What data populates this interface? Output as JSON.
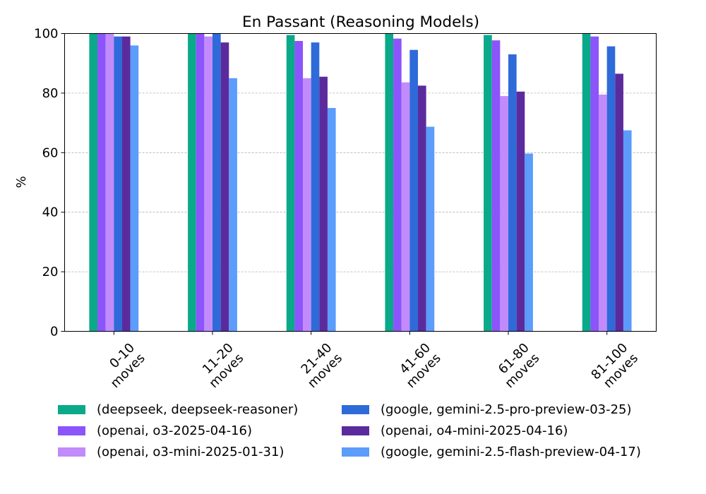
{
  "chart_data": {
    "type": "bar",
    "title": "En Passant (Reasoning Models)",
    "xlabel": "",
    "ylabel": "%",
    "ylim": [
      0,
      100
    ],
    "yticks": [
      "0",
      "20",
      "40",
      "60",
      "80",
      "100"
    ],
    "categories": [
      "0-10\nmoves",
      "11-20\nmoves",
      "21-40\nmoves",
      "41-60\nmoves",
      "61-80\nmoves",
      "81-100\nmoves"
    ],
    "grid": "y, dashed",
    "legend_position": "bottom",
    "series": [
      {
        "name": "(deepseek, deepseek-reasoner)",
        "color": "#0aa98a",
        "values": [
          100,
          100,
          99.5,
          100,
          99.5,
          100
        ]
      },
      {
        "name": "(openai, o3-2025-04-16)",
        "color": "#8c54fb",
        "values": [
          100,
          100,
          97.5,
          98.3,
          97.7,
          99
        ]
      },
      {
        "name": "(openai, o3-mini-2025-01-31)",
        "color": "#c18bfb",
        "values": [
          100,
          99,
          85,
          83.6,
          79,
          79.5
        ]
      },
      {
        "name": "(google, gemini-2.5-pro-preview-03-25)",
        "color": "#2f6ad9",
        "values": [
          99,
          100,
          97,
          94.5,
          93,
          95.7
        ]
      },
      {
        "name": "(openai, o4-mini-2025-04-16)",
        "color": "#5b2b9e",
        "values": [
          99,
          97,
          85.5,
          82.5,
          80.5,
          86.5
        ]
      },
      {
        "name": "(google, gemini-2.5-flash-preview-04-17)",
        "color": "#5c9cfb",
        "values": [
          96,
          85,
          75,
          68.7,
          59.7,
          67.5
        ]
      }
    ]
  }
}
